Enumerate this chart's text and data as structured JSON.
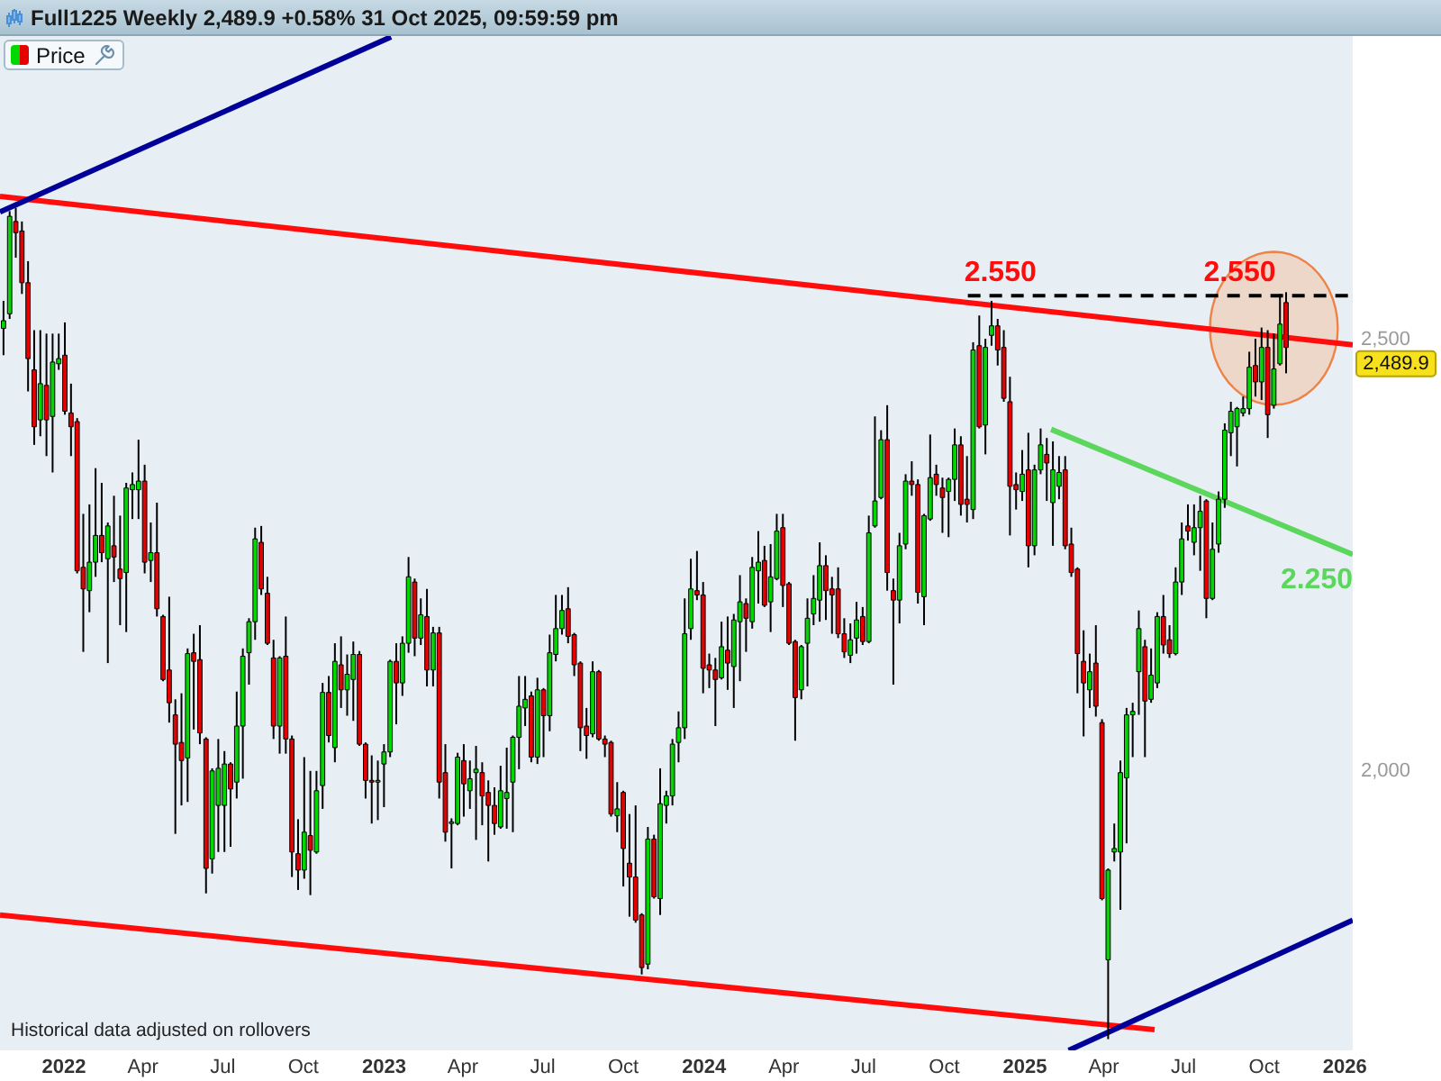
{
  "chart_data": {
    "type": "candlestick",
    "title": "Full1225 Weekly 2,489.9 +0.58% 31 Oct 2025, 09:59:59 pm",
    "xlim": [
      "2021-10-21",
      "2026-01-11"
    ],
    "xticks": [
      {
        "value": "2022-01-01",
        "label": "2022"
      },
      {
        "value": "2022-04-01",
        "label": "Apr"
      },
      {
        "value": "2022-07-01",
        "label": "Jul"
      },
      {
        "value": "2022-10-01",
        "label": "Oct"
      },
      {
        "value": "2023-01-01",
        "label": "2023"
      },
      {
        "value": "2023-04-01",
        "label": "Apr"
      },
      {
        "value": "2023-07-01",
        "label": "Jul"
      },
      {
        "value": "2023-10-01",
        "label": "Oct"
      },
      {
        "value": "2024-01-01",
        "label": "2024"
      },
      {
        "value": "2024-04-01",
        "label": "Apr"
      },
      {
        "value": "2024-07-01",
        "label": "Jul"
      },
      {
        "value": "2024-10-01",
        "label": "Oct"
      },
      {
        "value": "2025-01-01",
        "label": "2025"
      },
      {
        "value": "2025-04-01",
        "label": "Apr"
      },
      {
        "value": "2025-07-01",
        "label": "Jul"
      },
      {
        "value": "2025-10-01",
        "label": "Oct"
      },
      {
        "value": "2026-01-01",
        "label": "2026"
      }
    ],
    "ylim": [
      1675,
      2851
    ],
    "yticks": [
      {
        "value": 2000,
        "label": "2,000"
      },
      {
        "value": 2500,
        "label": "2,500"
      }
    ],
    "legend": "top left",
    "series": [
      {
        "name": "Price",
        "x": [
          "2021-10-25",
          "2021-11-01",
          "2021-11-08",
          "2021-11-15",
          "2021-11-22",
          "2021-11-29",
          "2021-12-06",
          "2021-12-13",
          "2021-12-20",
          "2021-12-27",
          "2022-01-03",
          "2022-01-10",
          "2022-01-17",
          "2022-01-24",
          "2022-01-31",
          "2022-02-07",
          "2022-02-14",
          "2022-02-21",
          "2022-02-28",
          "2022-03-07",
          "2022-03-14",
          "2022-03-21",
          "2022-03-28",
          "2022-04-04",
          "2022-04-11",
          "2022-04-18",
          "2022-04-25",
          "2022-05-02",
          "2022-05-09",
          "2022-05-16",
          "2022-05-23",
          "2022-05-30",
          "2022-06-06",
          "2022-06-13",
          "2022-06-20",
          "2022-06-27",
          "2022-07-04",
          "2022-07-11",
          "2022-07-18",
          "2022-07-25",
          "2022-08-01",
          "2022-08-08",
          "2022-08-15",
          "2022-08-22",
          "2022-08-29",
          "2022-09-05",
          "2022-09-12",
          "2022-09-19",
          "2022-09-26",
          "2022-10-03",
          "2022-10-10",
          "2022-10-17",
          "2022-10-24",
          "2022-10-31",
          "2022-11-07",
          "2022-11-14",
          "2022-11-21",
          "2022-11-28",
          "2022-12-05",
          "2022-12-12",
          "2022-12-19",
          "2022-12-26",
          "2023-01-02",
          "2023-01-09",
          "2023-01-16",
          "2023-01-23",
          "2023-01-30",
          "2023-02-06",
          "2023-02-13",
          "2023-02-20",
          "2023-02-27",
          "2023-03-06",
          "2023-03-13",
          "2023-03-20",
          "2023-03-27",
          "2023-04-03",
          "2023-04-10",
          "2023-04-17",
          "2023-04-24",
          "2023-05-01",
          "2023-05-08",
          "2023-05-15",
          "2023-05-22",
          "2023-05-29",
          "2023-06-05",
          "2023-06-12",
          "2023-06-19",
          "2023-06-26",
          "2023-07-03",
          "2023-07-10",
          "2023-07-17",
          "2023-07-24",
          "2023-07-31",
          "2023-08-07",
          "2023-08-14",
          "2023-08-21",
          "2023-08-28",
          "2023-09-04",
          "2023-09-11",
          "2023-09-18",
          "2023-09-25",
          "2023-10-02",
          "2023-10-09",
          "2023-10-16",
          "2023-10-23",
          "2023-10-30",
          "2023-11-06",
          "2023-11-13",
          "2023-11-20",
          "2023-11-27",
          "2023-12-04",
          "2023-12-11",
          "2023-12-18",
          "2023-12-25",
          "2024-01-01",
          "2024-01-08",
          "2024-01-15",
          "2024-01-22",
          "2024-01-29",
          "2024-02-05",
          "2024-02-12",
          "2024-02-19",
          "2024-02-26",
          "2024-03-04",
          "2024-03-11",
          "2024-03-18",
          "2024-03-25",
          "2024-04-01",
          "2024-04-08",
          "2024-04-15",
          "2024-04-22",
          "2024-04-29",
          "2024-05-06",
          "2024-05-13",
          "2024-05-20",
          "2024-05-27",
          "2024-06-03",
          "2024-06-10",
          "2024-06-17",
          "2024-06-24",
          "2024-07-01",
          "2024-07-08",
          "2024-07-15",
          "2024-07-22",
          "2024-07-29",
          "2024-08-05",
          "2024-08-12",
          "2024-08-19",
          "2024-08-26",
          "2024-09-02",
          "2024-09-09",
          "2024-09-16",
          "2024-09-23",
          "2024-09-30",
          "2024-10-07",
          "2024-10-14",
          "2024-10-21",
          "2024-10-28",
          "2024-11-04",
          "2024-11-11",
          "2024-11-18",
          "2024-11-25",
          "2024-12-02",
          "2024-12-09",
          "2024-12-16",
          "2024-12-23",
          "2024-12-30",
          "2025-01-06",
          "2025-01-13",
          "2025-01-20",
          "2025-01-27",
          "2025-02-03",
          "2025-02-10",
          "2025-02-17",
          "2025-02-24",
          "2025-03-03",
          "2025-03-10",
          "2025-03-17",
          "2025-03-24",
          "2025-03-31",
          "2025-04-07",
          "2025-04-14",
          "2025-04-21",
          "2025-04-28",
          "2025-05-05",
          "2025-05-12",
          "2025-05-19",
          "2025-05-26",
          "2025-06-02",
          "2025-06-09",
          "2025-06-16",
          "2025-06-23",
          "2025-06-30",
          "2025-07-07",
          "2025-07-14",
          "2025-07-21",
          "2025-07-28",
          "2025-08-04",
          "2025-08-11",
          "2025-08-18",
          "2025-08-25",
          "2025-09-01",
          "2025-09-08",
          "2025-09-15",
          "2025-09-22",
          "2025-09-29",
          "2025-10-06",
          "2025-10-13",
          "2025-10-20",
          "2025-10-27"
        ],
        "ohlc": [
          [
            2512,
            2544,
            2481,
            2521
          ],
          [
            2529,
            2648,
            2523,
            2642
          ],
          [
            2636,
            2652,
            2594,
            2623
          ],
          [
            2625,
            2636,
            2552,
            2565
          ],
          [
            2565,
            2590,
            2439,
            2477
          ],
          [
            2464,
            2510,
            2377,
            2398
          ],
          [
            2406,
            2510,
            2387,
            2448
          ],
          [
            2446,
            2506,
            2364,
            2406
          ],
          [
            2410,
            2506,
            2345,
            2473
          ],
          [
            2471,
            2506,
            2464,
            2477
          ],
          [
            2481,
            2519,
            2412,
            2416
          ],
          [
            2414,
            2448,
            2364,
            2398
          ],
          [
            2404,
            2408,
            2228,
            2231
          ],
          [
            2235,
            2297,
            2137,
            2210
          ],
          [
            2208,
            2308,
            2183,
            2241
          ],
          [
            2241,
            2350,
            2224,
            2272
          ],
          [
            2272,
            2333,
            2241,
            2252
          ],
          [
            2245,
            2287,
            2124,
            2283
          ],
          [
            2260,
            2318,
            2218,
            2247
          ],
          [
            2233,
            2295,
            2168,
            2222
          ],
          [
            2229,
            2333,
            2160,
            2327
          ],
          [
            2325,
            2345,
            2291,
            2331
          ],
          [
            2325,
            2383,
            2291,
            2335
          ],
          [
            2335,
            2354,
            2228,
            2241
          ],
          [
            2243,
            2287,
            2218,
            2252
          ],
          [
            2252,
            2310,
            2178,
            2187
          ],
          [
            2178,
            2180,
            2103,
            2105
          ],
          [
            2116,
            2201,
            2055,
            2078
          ],
          [
            2064,
            2082,
            1926,
            2030
          ],
          [
            2032,
            2089,
            1959,
            2011
          ],
          [
            2014,
            2141,
            1963,
            2135
          ],
          [
            2136,
            2158,
            2047,
            2126
          ],
          [
            2128,
            2168,
            2030,
            2043
          ],
          [
            2036,
            2038,
            1857,
            1886
          ],
          [
            1897,
            2002,
            1880,
            1999
          ],
          [
            1959,
            2036,
            1905,
            2002
          ],
          [
            1959,
            2022,
            1905,
            2007
          ],
          [
            2007,
            2009,
            1911,
            1978
          ],
          [
            1986,
            2091,
            1967,
            2051
          ],
          [
            2051,
            2141,
            1990,
            2132
          ],
          [
            2136,
            2176,
            2099,
            2172
          ],
          [
            2172,
            2281,
            2151,
            2268
          ],
          [
            2264,
            2283,
            2203,
            2210
          ],
          [
            2205,
            2224,
            2145,
            2147
          ],
          [
            2130,
            2151,
            2036,
            2051
          ],
          [
            2051,
            2132,
            2019,
            2130
          ],
          [
            2132,
            2178,
            2019,
            2036
          ],
          [
            2036,
            2040,
            1876,
            1905
          ],
          [
            1903,
            1943,
            1861,
            1884
          ],
          [
            1884,
            2015,
            1874,
            1928
          ],
          [
            1924,
            1999,
            1855,
            1907
          ],
          [
            1905,
            1999,
            1903,
            1976
          ],
          [
            1982,
            2101,
            1955,
            2090
          ],
          [
            2090,
            2109,
            2032,
            2040
          ],
          [
            2026,
            2147,
            2009,
            2126
          ],
          [
            2122,
            2155,
            2072,
            2093
          ],
          [
            2093,
            2134,
            2063,
            2111
          ],
          [
            2105,
            2149,
            2057,
            2134
          ],
          [
            2134,
            2138,
            2028,
            2030
          ],
          [
            2030,
            2032,
            1967,
            1988
          ],
          [
            1988,
            2017,
            1938,
            1986
          ],
          [
            1986,
            2011,
            1942,
            1988
          ],
          [
            2007,
            2030,
            1957,
            2021
          ],
          [
            2021,
            2128,
            2015,
            2126
          ],
          [
            2126,
            2147,
            2053,
            2101
          ],
          [
            2101,
            2155,
            2086,
            2147
          ],
          [
            2147,
            2247,
            2136,
            2224
          ],
          [
            2218,
            2222,
            2132,
            2153
          ],
          [
            2153,
            2199,
            2145,
            2180
          ],
          [
            2178,
            2210,
            2097,
            2116
          ],
          [
            2116,
            2166,
            2097,
            2159
          ],
          [
            2159,
            2166,
            1967,
            1986
          ],
          [
            1997,
            2030,
            1917,
            1928
          ],
          [
            1938,
            1944,
            1886,
            1940
          ],
          [
            1938,
            2020,
            1936,
            2015
          ],
          [
            2011,
            2030,
            1946,
            1984
          ],
          [
            1976,
            2011,
            1955,
            1990
          ],
          [
            1997,
            2028,
            1919,
            2001
          ],
          [
            1997,
            2009,
            1936,
            1970
          ],
          [
            1974,
            1988,
            1894,
            1959
          ],
          [
            1959,
            1980,
            1925,
            1938
          ],
          [
            1934,
            2005,
            1932,
            1976
          ],
          [
            1967,
            2026,
            1932,
            1974
          ],
          [
            1986,
            2040,
            1928,
            2038
          ],
          [
            2038,
            2109,
            2001,
            2074
          ],
          [
            2072,
            2109,
            2051,
            2082
          ],
          [
            2086,
            2091,
            2009,
            2015
          ],
          [
            2015,
            2107,
            2007,
            2093
          ],
          [
            2093,
            2095,
            2015,
            2063
          ],
          [
            2063,
            2157,
            2045,
            2136
          ],
          [
            2134,
            2203,
            2126,
            2164
          ],
          [
            2164,
            2203,
            2157,
            2185
          ],
          [
            2187,
            2212,
            2147,
            2155
          ],
          [
            2157,
            2159,
            2109,
            2122
          ],
          [
            2124,
            2126,
            2022,
            2049
          ],
          [
            2051,
            2072,
            2013,
            2040
          ],
          [
            2042,
            2126,
            2038,
            2114
          ],
          [
            2114,
            2116,
            2034,
            2036
          ],
          [
            2036,
            2040,
            2015,
            2030
          ],
          [
            2032,
            2034,
            1946,
            1949
          ],
          [
            1947,
            1986,
            1928,
            1955
          ],
          [
            1974,
            1976,
            1865,
            1909
          ],
          [
            1892,
            1949,
            1830,
            1876
          ],
          [
            1876,
            1959,
            1823,
            1826
          ],
          [
            1832,
            1834,
            1763,
            1771
          ],
          [
            1775,
            1934,
            1769,
            1920
          ],
          [
            1920,
            1925,
            1851,
            1853
          ],
          [
            1851,
            2002,
            1832,
            1961
          ],
          [
            1959,
            1976,
            1938,
            1970
          ],
          [
            1970,
            2036,
            1959,
            2030
          ],
          [
            2032,
            2068,
            2009,
            2049
          ],
          [
            2049,
            2199,
            2036,
            2158
          ],
          [
            2164,
            2245,
            2151,
            2210
          ],
          [
            2208,
            2254,
            2197,
            2203
          ],
          [
            2203,
            2218,
            2089,
            2118
          ],
          [
            2122,
            2135,
            2095,
            2116
          ],
          [
            2116,
            2130,
            2051,
            2105
          ],
          [
            2107,
            2172,
            2105,
            2143
          ],
          [
            2139,
            2178,
            2093,
            2124
          ],
          [
            2120,
            2181,
            2072,
            2174
          ],
          [
            2172,
            2226,
            2103,
            2195
          ],
          [
            2193,
            2199,
            2137,
            2176
          ],
          [
            2172,
            2247,
            2164,
            2235
          ],
          [
            2231,
            2277,
            2193,
            2241
          ],
          [
            2243,
            2260,
            2189,
            2191
          ],
          [
            2195,
            2262,
            2160,
            2224
          ],
          [
            2222,
            2297,
            2220,
            2277
          ],
          [
            2281,
            2297,
            2189,
            2214
          ],
          [
            2216,
            2218,
            2145,
            2147
          ],
          [
            2149,
            2151,
            2034,
            2084
          ],
          [
            2093,
            2145,
            2082,
            2143
          ],
          [
            2147,
            2199,
            2097,
            2176
          ],
          [
            2181,
            2226,
            2168,
            2199
          ],
          [
            2197,
            2264,
            2172,
            2237
          ],
          [
            2237,
            2249,
            2174,
            2208
          ],
          [
            2210,
            2224,
            2158,
            2203
          ],
          [
            2210,
            2235,
            2153,
            2158
          ],
          [
            2158,
            2176,
            2130,
            2137
          ],
          [
            2133,
            2170,
            2124,
            2151
          ],
          [
            2153,
            2195,
            2135,
            2174
          ],
          [
            2178,
            2189,
            2145,
            2149
          ],
          [
            2149,
            2295,
            2147,
            2275
          ],
          [
            2283,
            2410,
            2281,
            2312
          ],
          [
            2316,
            2394,
            2314,
            2383
          ],
          [
            2383,
            2423,
            2208,
            2229
          ],
          [
            2208,
            2222,
            2099,
            2197
          ],
          [
            2197,
            2275,
            2170,
            2260
          ],
          [
            2262,
            2343,
            2256,
            2335
          ],
          [
            2335,
            2358,
            2318,
            2331
          ],
          [
            2331,
            2337,
            2193,
            2206
          ],
          [
            2201,
            2297,
            2168,
            2295
          ],
          [
            2291,
            2389,
            2289,
            2339
          ],
          [
            2343,
            2354,
            2318,
            2331
          ],
          [
            2327,
            2339,
            2275,
            2316
          ],
          [
            2323,
            2339,
            2270,
            2337
          ],
          [
            2337,
            2396,
            2312,
            2377
          ],
          [
            2377,
            2387,
            2295,
            2308
          ],
          [
            2314,
            2364,
            2287,
            2308
          ],
          [
            2302,
            2496,
            2291,
            2487
          ],
          [
            2492,
            2527,
            2396,
            2398
          ],
          [
            2400,
            2500,
            2366,
            2490
          ],
          [
            2504,
            2544,
            2492,
            2515
          ],
          [
            2515,
            2523,
            2469,
            2487
          ],
          [
            2490,
            2510,
            2427,
            2431
          ],
          [
            2427,
            2456,
            2272,
            2329
          ],
          [
            2331,
            2345,
            2302,
            2325
          ],
          [
            2323,
            2371,
            2312,
            2343
          ],
          [
            2348,
            2391,
            2235,
            2260
          ],
          [
            2260,
            2354,
            2249,
            2348
          ],
          [
            2348,
            2396,
            2343,
            2377
          ],
          [
            2366,
            2385,
            2312,
            2356
          ],
          [
            2310,
            2381,
            2260,
            2348
          ],
          [
            2329,
            2364,
            2314,
            2345
          ],
          [
            2348,
            2364,
            2256,
            2260
          ],
          [
            2262,
            2281,
            2224,
            2229
          ],
          [
            2233,
            2235,
            2089,
            2135
          ],
          [
            2126,
            2162,
            2039,
            2101
          ],
          [
            2093,
            2135,
            2072,
            2114
          ],
          [
            2124,
            2168,
            2062,
            2074
          ],
          [
            2055,
            2059,
            1849,
            1851
          ],
          [
            1780,
            1886,
            1688,
            1884
          ],
          [
            1905,
            1938,
            1894,
            1909
          ],
          [
            1905,
            2011,
            1838,
            1997
          ],
          [
            1991,
            2072,
            1915,
            2064
          ],
          [
            2064,
            2078,
            2015,
            2068
          ],
          [
            2114,
            2185,
            2064,
            2164
          ],
          [
            2143,
            2151,
            2015,
            2080
          ],
          [
            2082,
            2141,
            2078,
            2110
          ],
          [
            2101,
            2183,
            2095,
            2178
          ],
          [
            2178,
            2203,
            2135,
            2145
          ],
          [
            2151,
            2168,
            2130,
            2135
          ],
          [
            2135,
            2235,
            2133,
            2218
          ],
          [
            2218,
            2287,
            2203,
            2268
          ],
          [
            2283,
            2308,
            2266,
            2277
          ],
          [
            2264,
            2308,
            2249,
            2281
          ],
          [
            2281,
            2318,
            2231,
            2300
          ],
          [
            2312,
            2314,
            2176,
            2199
          ],
          [
            2199,
            2287,
            2197,
            2256
          ],
          [
            2262,
            2323,
            2252,
            2314
          ],
          [
            2314,
            2402,
            2304,
            2394
          ],
          [
            2391,
            2427,
            2364,
            2416
          ],
          [
            2398,
            2421,
            2352,
            2419
          ],
          [
            2414,
            2433,
            2410,
            2419
          ],
          [
            2419,
            2485,
            2412,
            2467
          ],
          [
            2469,
            2500,
            2433,
            2450
          ],
          [
            2450,
            2513,
            2429,
            2490
          ],
          [
            2490,
            2510,
            2385,
            2412
          ],
          [
            2423,
            2506,
            2419,
            2465
          ],
          [
            2471,
            2552,
            2469,
            2517
          ],
          [
            2542,
            2554,
            2460,
            2489.9
          ]
        ],
        "colors": [
          "#00d800",
          "#00d800",
          "#e60000",
          "#e60000",
          "#e60000",
          "#e60000",
          "#00d800",
          "#e60000",
          "#00d800",
          "#00d800",
          "#e60000",
          "#e60000",
          "#e60000",
          "#e60000",
          "#00d800",
          "#00d800",
          "#e60000",
          "#00d800",
          "#e60000",
          "#e60000",
          "#00d800",
          "#00d800",
          "#00d800",
          "#e60000",
          "#00d800",
          "#e60000",
          "#e60000",
          "#e60000",
          "#e60000",
          "#e60000",
          "#00d800",
          "#e60000",
          "#e60000",
          "#e60000",
          "#00d800",
          "#00d800",
          "#00d800",
          "#e60000",
          "#00d800",
          "#00d800",
          "#00d800",
          "#00d800",
          "#e60000",
          "#e60000",
          "#e60000",
          "#00d800",
          "#e60000",
          "#e60000",
          "#e60000",
          "#00d800",
          "#e60000",
          "#00d800",
          "#00d800",
          "#e60000",
          "#00d800",
          "#e60000",
          "#00d800",
          "#00d800",
          "#e60000",
          "#e60000",
          "#e60000",
          "#00d800",
          "#00d800",
          "#00d800",
          "#e60000",
          "#00d800",
          "#00d800",
          "#e60000",
          "#00d800",
          "#e60000",
          "#00d800",
          "#e60000",
          "#e60000",
          "#00d800",
          "#00d800",
          "#e60000",
          "#00d800",
          "#00d800",
          "#e60000",
          "#e60000",
          "#e60000",
          "#00d800",
          "#00d800",
          "#00d800",
          "#00d800",
          "#00d800",
          "#e60000",
          "#00d800",
          "#e60000",
          "#00d800",
          "#00d800",
          "#00d800",
          "#e60000",
          "#e60000",
          "#e60000",
          "#e60000",
          "#00d800",
          "#e60000",
          "#e60000",
          "#e60000",
          "#00d800",
          "#e60000",
          "#e60000",
          "#e60000",
          "#e60000",
          "#00d800",
          "#e60000",
          "#00d800",
          "#00d800",
          "#00d800",
          "#00d800",
          "#00d800",
          "#00d800",
          "#e60000",
          "#e60000",
          "#e60000",
          "#e60000",
          "#00d800",
          "#e60000",
          "#00d800",
          "#00d800",
          "#e60000",
          "#00d800",
          "#00d800",
          "#e60000",
          "#00d800",
          "#00d800",
          "#e60000",
          "#e60000",
          "#e60000",
          "#00d800",
          "#00d800",
          "#00d800",
          "#00d800",
          "#e60000",
          "#e60000",
          "#e60000",
          "#e60000",
          "#00d800",
          "#00d800",
          "#e60000",
          "#00d800",
          "#00d800",
          "#00d800",
          "#e60000",
          "#e60000",
          "#00d800",
          "#00d800",
          "#e60000",
          "#e60000",
          "#00d800",
          "#00d800",
          "#e60000",
          "#e60000",
          "#00d800",
          "#00d800",
          "#e60000",
          "#e60000",
          "#00d800",
          "#e60000",
          "#00d800",
          "#00d800",
          "#e60000",
          "#e60000",
          "#e60000",
          "#e60000",
          "#00d800",
          "#e60000",
          "#00d800",
          "#00d800",
          "#e60000",
          "#00d800",
          "#00d800",
          "#e60000",
          "#e60000",
          "#e60000",
          "#e60000",
          "#00d800",
          "#e60000",
          "#e60000",
          "#00d800",
          "#00d800",
          "#00d800",
          "#00d800",
          "#00d800",
          "#00d800",
          "#e60000",
          "#00d800",
          "#00d800",
          "#e60000",
          "#e60000",
          "#00d800",
          "#00d800",
          "#e60000",
          "#00d800",
          "#00d800",
          "#e60000",
          "#00d800",
          "#00d800",
          "#00d800",
          "#00d800",
          "#00d800",
          "#00d800",
          "#00d800",
          "#e60000",
          "#00d800",
          "#e60000",
          "#00d800",
          "#00d800",
          "#e60000"
        ]
      },
      {
        "type": "line",
        "color": "#ff0d0d",
        "x": [
          "2021-10-21",
          "2026-01-11"
        ],
        "values": [
          2665,
          2493
        ]
      },
      {
        "type": "line",
        "color": "#ff0d0d",
        "x": [
          "2021-10-21",
          "2025-05-30"
        ],
        "values": [
          1832,
          1699
        ]
      },
      {
        "type": "line",
        "color": "#000099",
        "x": [
          "2021-10-21",
          "2023-01-10"
        ],
        "values": [
          2647,
          2850
        ]
      },
      {
        "type": "line",
        "color": "#000099",
        "x": [
          "2025-02-21",
          "2026-01-11"
        ],
        "values": [
          1675,
          1826
        ]
      },
      {
        "type": "line",
        "color": "#5cd65c",
        "x": [
          "2025-02-01",
          "2026-01-11"
        ],
        "values": [
          2395,
          2250
        ]
      },
      {
        "type": "line",
        "color": "#000000",
        "line_style": "dashed",
        "x": [
          "2024-10-29",
          "2026-01-11"
        ],
        "values": [
          2550,
          2550
        ]
      }
    ],
    "annotations": [
      {
        "text": "2.550",
        "x": "2024-12-05",
        "y": 2550
      },
      {
        "text": "2.550",
        "x": "2025-09-04",
        "y": 2550
      },
      {
        "text": "2.250",
        "x": "2026-01-11",
        "y": 2250
      },
      {
        "text": "2,489.9",
        "x": "2026-01-11",
        "y": 2489.9
      },
      "Historical data adjusted on rollovers"
    ]
  }
}
